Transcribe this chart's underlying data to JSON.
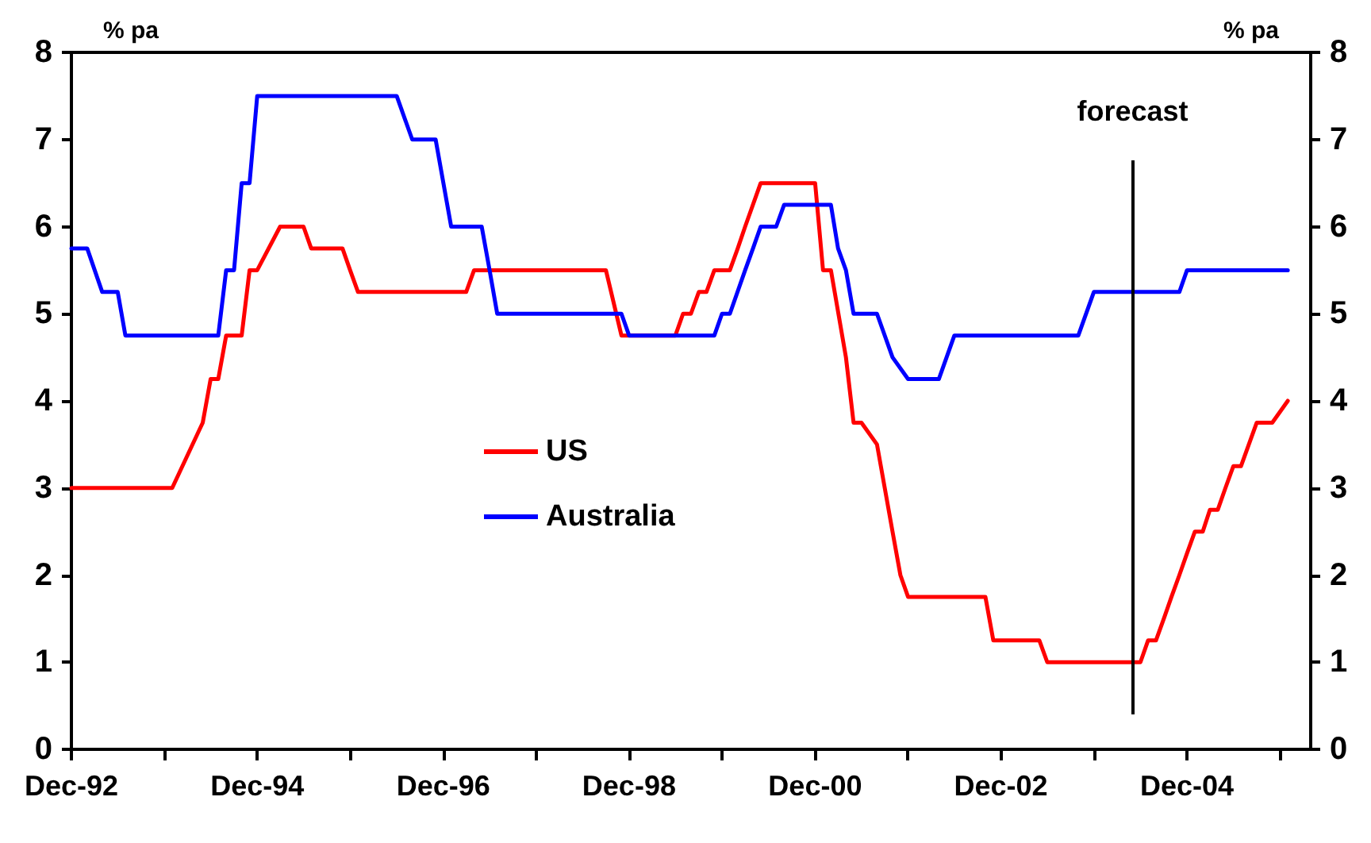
{
  "chart_data": {
    "type": "line",
    "ylabel": "% pa",
    "y2label": "% pa",
    "xlim": [
      "1992-12",
      "2006-04"
    ],
    "xticks": [
      {
        "value": "1992-12",
        "label": "Dec-92"
      },
      {
        "value": "1993-12",
        "label": null
      },
      {
        "value": "1994-12",
        "label": "Dec-94"
      },
      {
        "value": "1995-12",
        "label": null
      },
      {
        "value": "1996-12",
        "label": "Dec-96"
      },
      {
        "value": "1997-12",
        "label": null
      },
      {
        "value": "1998-12",
        "label": "Dec-98"
      },
      {
        "value": "1999-12",
        "label": null
      },
      {
        "value": "2000-12",
        "label": "Dec-00"
      },
      {
        "value": "2001-12",
        "label": null
      },
      {
        "value": "2002-12",
        "label": "Dec-02"
      },
      {
        "value": "2003-12",
        "label": null
      },
      {
        "value": "2004-12",
        "label": "Dec-04"
      },
      {
        "value": "2005-12",
        "label": null
      }
    ],
    "ylim": [
      0,
      8
    ],
    "yticks": [
      0,
      1,
      2,
      3,
      4,
      5,
      6,
      7,
      8
    ],
    "y2lim": [
      0,
      8
    ],
    "y2ticks": [
      0,
      1,
      2,
      3,
      4,
      5,
      6,
      7,
      8
    ],
    "legend": "center",
    "marker": "none",
    "line_style": "solid",
    "ref_lines": [
      {
        "axis": "x",
        "value": "2004-05",
        "label": "forecast"
      }
    ],
    "series": [
      {
        "name": "US",
        "color": "#ff0000",
        "x": [
          "1992-12",
          "1994-01",
          "1994-05",
          "1994-06",
          "1994-07",
          "1994-08",
          "1994-10",
          "1994-11",
          "1994-12",
          "1995-03",
          "1995-06",
          "1995-07",
          "1995-11",
          "1995-12",
          "1996-01",
          "1997-03",
          "1997-04",
          "1998-09",
          "1998-11",
          "1999-06",
          "1999-07",
          "1999-08",
          "1999-09",
          "1999-10",
          "1999-11",
          "2000-01",
          "2000-02",
          "2000-03",
          "2000-05",
          "2000-12",
          "2001-01",
          "2001-02",
          "2001-04",
          "2001-05",
          "2001-06",
          "2001-08",
          "2001-10",
          "2001-11",
          "2001-12",
          "2002-10",
          "2002-11",
          "2003-05",
          "2003-06",
          "2004-06",
          "2004-07",
          "2004-08",
          "2004-09",
          "2004-10",
          "2004-11",
          "2004-12",
          "2005-01",
          "2005-02",
          "2005-03",
          "2005-04",
          "2005-05",
          "2005-06",
          "2005-07",
          "2005-08",
          "2005-09",
          "2005-11",
          "2006-01"
        ],
        "values": [
          3.0,
          3.0,
          3.75,
          4.25,
          4.25,
          4.75,
          4.75,
          5.5,
          5.5,
          6.0,
          6.0,
          5.75,
          5.75,
          5.5,
          5.25,
          5.25,
          5.5,
          5.5,
          4.75,
          4.75,
          5.0,
          5.0,
          5.25,
          5.25,
          5.5,
          5.5,
          5.75,
          6.0,
          6.5,
          6.5,
          5.5,
          5.5,
          4.5,
          3.75,
          3.75,
          3.5,
          2.5,
          2.0,
          1.75,
          1.75,
          1.25,
          1.25,
          1.0,
          1.0,
          1.25,
          1.25,
          1.5,
          1.75,
          2.0,
          2.25,
          2.5,
          2.5,
          2.75,
          2.75,
          3.0,
          3.25,
          3.25,
          3.5,
          3.75,
          3.75,
          4.0
        ]
      },
      {
        "name": "Australia",
        "color": "#0000ff",
        "x": [
          "1992-12",
          "1993-02",
          "1993-04",
          "1993-06",
          "1993-07",
          "1994-07",
          "1994-08",
          "1994-09",
          "1994-10",
          "1994-11",
          "1994-12",
          "1996-06",
          "1996-08",
          "1996-11",
          "1997-01",
          "1997-05",
          "1997-06",
          "1997-07",
          "1998-11",
          "1998-12",
          "1999-11",
          "1999-12",
          "2000-01",
          "2000-03",
          "2000-04",
          "2000-05",
          "2000-07",
          "2000-08",
          "2001-02",
          "2001-03",
          "2001-04",
          "2001-05",
          "2001-08",
          "2001-10",
          "2001-12",
          "2002-04",
          "2002-06",
          "2003-10",
          "2003-12",
          "2004-11",
          "2004-12",
          "2006-01"
        ],
        "values": [
          5.75,
          5.75,
          5.25,
          5.25,
          4.75,
          4.75,
          5.5,
          5.5,
          6.5,
          6.5,
          7.5,
          7.5,
          7.0,
          7.0,
          6.0,
          6.0,
          5.5,
          5.0,
          5.0,
          4.75,
          4.75,
          5.0,
          5.0,
          5.5,
          5.75,
          6.0,
          6.0,
          6.25,
          6.25,
          5.75,
          5.5,
          5.0,
          5.0,
          4.5,
          4.25,
          4.25,
          4.75,
          4.75,
          5.25,
          5.25,
          5.5,
          5.5
        ]
      }
    ]
  }
}
